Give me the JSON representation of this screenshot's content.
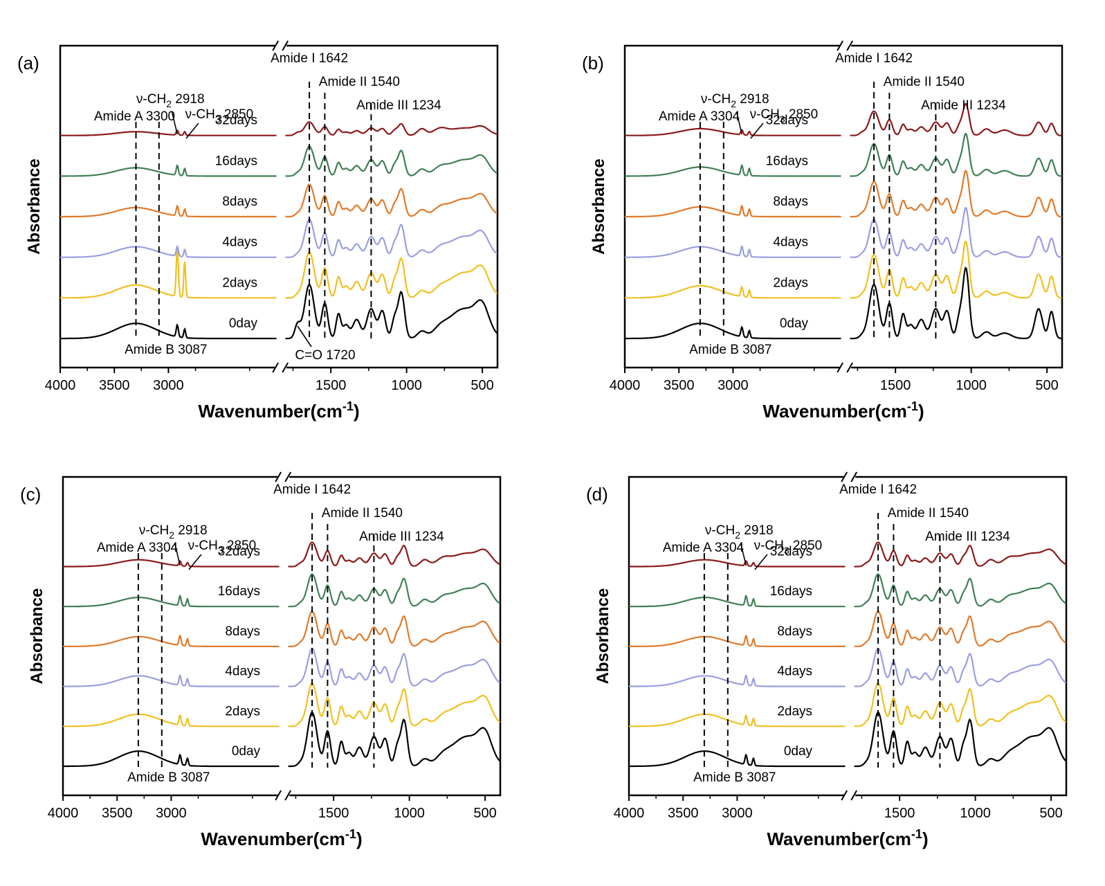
{
  "colors": {
    "0day": "#000000",
    "2days": "#f0c020",
    "4days": "#9a9ee0",
    "8days": "#e07a2a",
    "16days": "#3f7f55",
    "32days": "#8b1a1a",
    "axis": "#000000"
  },
  "chart_data": [
    {
      "type": "line",
      "panel_label": "(a)",
      "xlabel": "Wavenumber(cm",
      "xlabel_sup": "-1",
      "xlabel_close": ")",
      "ylabel": "Absorbance",
      "x_break": [
        2000,
        1800
      ],
      "xlim": [
        4000,
        400
      ],
      "ticks_left": [
        "4000",
        "3500",
        "3000"
      ],
      "ticks_right": [
        "1500",
        "1000",
        "500"
      ],
      "series": [
        {
          "name": "0day",
          "offset": 0
        },
        {
          "name": "2days",
          "offset": 1
        },
        {
          "name": "4days",
          "offset": 2
        },
        {
          "name": "8days",
          "offset": 3
        },
        {
          "name": "16days",
          "offset": 4
        },
        {
          "name": "32days",
          "offset": 5
        }
      ],
      "annotations": {
        "amideA": "Amide A 3300",
        "amideB": "Amide B 3087",
        "ch2": "ν-CH",
        "ch2_sub": "2",
        "ch2_val": "2918",
        "ch3": "ν-CH",
        "ch3_sub": "3",
        "ch3_val": "2850",
        "amideI": "Amide I 1642",
        "amideII": "Amide II 1540",
        "amideIII": "Amide III 1234",
        "co": "C=O 1720"
      },
      "dashed_lines_at": [
        3300,
        3087,
        1642,
        1540,
        1234
      ]
    },
    {
      "type": "line",
      "panel_label": "(b)",
      "xlabel": "Wavenumber(cm",
      "xlabel_sup": "-1",
      "xlabel_close": ")",
      "ylabel": "Absorbance",
      "x_break": [
        2000,
        1800
      ],
      "xlim": [
        4000,
        400
      ],
      "ticks_left": [
        "4000",
        "3500",
        "3000"
      ],
      "ticks_right": [
        "1500",
        "1000",
        "500"
      ],
      "series": [
        {
          "name": "0day",
          "offset": 0
        },
        {
          "name": "2days",
          "offset": 1
        },
        {
          "name": "4days",
          "offset": 2
        },
        {
          "name": "8days",
          "offset": 3
        },
        {
          "name": "16days",
          "offset": 4
        },
        {
          "name": "32days",
          "offset": 5
        }
      ],
      "annotations": {
        "amideA": "Amide A 3304",
        "amideB": "Amide B 3087",
        "ch2": "ν-CH",
        "ch2_sub": "2",
        "ch2_val": "2918",
        "ch3": "ν-CH",
        "ch3_sub": "3",
        "ch3_val": "2850",
        "amideI": "Amide I 1642",
        "amideII": "Amide II 1540",
        "amideIII": "Amide III 1234"
      },
      "dashed_lines_at": [
        3304,
        3087,
        1642,
        1540,
        1234
      ]
    },
    {
      "type": "line",
      "panel_label": "(c)",
      "xlabel": "Wavenumber(cm",
      "xlabel_sup": "-1",
      "xlabel_close": ")",
      "ylabel": "Absorbance",
      "x_break": [
        2000,
        1800
      ],
      "xlim": [
        4000,
        400
      ],
      "ticks_left": [
        "4000",
        "3500",
        "3000"
      ],
      "ticks_right": [
        "1500",
        "1000",
        "500"
      ],
      "series": [
        {
          "name": "0day",
          "offset": 0
        },
        {
          "name": "2days",
          "offset": 1
        },
        {
          "name": "4days",
          "offset": 2
        },
        {
          "name": "8days",
          "offset": 3
        },
        {
          "name": "16days",
          "offset": 4
        },
        {
          "name": "32days",
          "offset": 5
        }
      ],
      "annotations": {
        "amideA": "Amide A 3304",
        "amideB": "Amide B 3087",
        "ch2": "ν-CH",
        "ch2_sub": "2",
        "ch2_val": "2918",
        "ch3": "ν-CH",
        "ch3_sub": "3",
        "ch3_val": "2850",
        "amideI": "Amide I 1642",
        "amideII": "Amide II 1540",
        "amideIII": "Amide III 1234"
      },
      "dashed_lines_at": [
        3304,
        3087,
        1642,
        1540,
        1234
      ]
    },
    {
      "type": "line",
      "panel_label": "(d)",
      "xlabel": "Wavenumber(cm",
      "xlabel_sup": "-1",
      "xlabel_close": ")",
      "ylabel": "Absorbance",
      "x_break": [
        2000,
        1800
      ],
      "xlim": [
        4000,
        400
      ],
      "ticks_left": [
        "4000",
        "3500",
        "3000"
      ],
      "ticks_right": [
        "1500",
        "1000",
        "500"
      ],
      "series": [
        {
          "name": "0day",
          "offset": 0
        },
        {
          "name": "2days",
          "offset": 1
        },
        {
          "name": "4days",
          "offset": 2
        },
        {
          "name": "8days",
          "offset": 3
        },
        {
          "name": "16days",
          "offset": 4
        },
        {
          "name": "32days",
          "offset": 5
        }
      ],
      "annotations": {
        "amideA": "Amide A 3304",
        "amideB": "Amide B 3087",
        "ch2": "ν-CH",
        "ch2_sub": "2",
        "ch2_val": "2918",
        "ch3": "ν-CH",
        "ch3_sub": "3",
        "ch3_val": "2850",
        "amideI": "Amide I 1642",
        "amideII": "Amide II 1540",
        "amideIII": "Amide III 1234"
      },
      "dashed_lines_at": [
        3304,
        3087,
        1642,
        1540,
        1234
      ]
    }
  ]
}
